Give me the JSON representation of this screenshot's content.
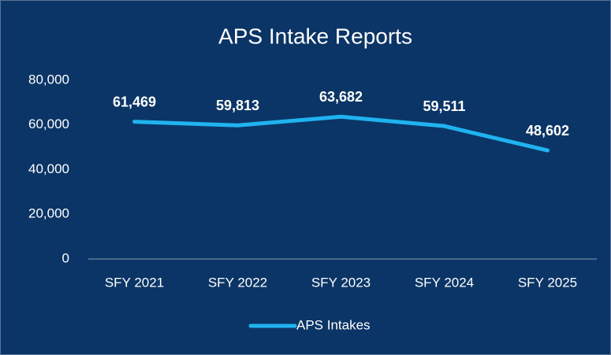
{
  "chart_data": {
    "type": "line",
    "title": "APS Intake Reports",
    "categories": [
      "SFY 2021",
      "SFY 2022",
      "SFY 2023",
      "SFY 2024",
      "SFY 2025"
    ],
    "series": [
      {
        "name": "APS Intakes",
        "color": "#1fb3ef",
        "values": [
          61469,
          59813,
          63682,
          59511,
          48602
        ],
        "value_labels": [
          "61,469",
          "59,813",
          "63,682",
          "59,511",
          "48,602"
        ]
      }
    ],
    "ylim": [
      0,
      80000
    ],
    "yticks": [
      {
        "value": 0,
        "label": "0"
      },
      {
        "value": 20000,
        "label": "20,000"
      },
      {
        "value": 40000,
        "label": "40,000"
      },
      {
        "value": 60000,
        "label": "60,000"
      },
      {
        "value": 80000,
        "label": "80,000"
      }
    ],
    "grid": false,
    "legend": "bottom"
  }
}
